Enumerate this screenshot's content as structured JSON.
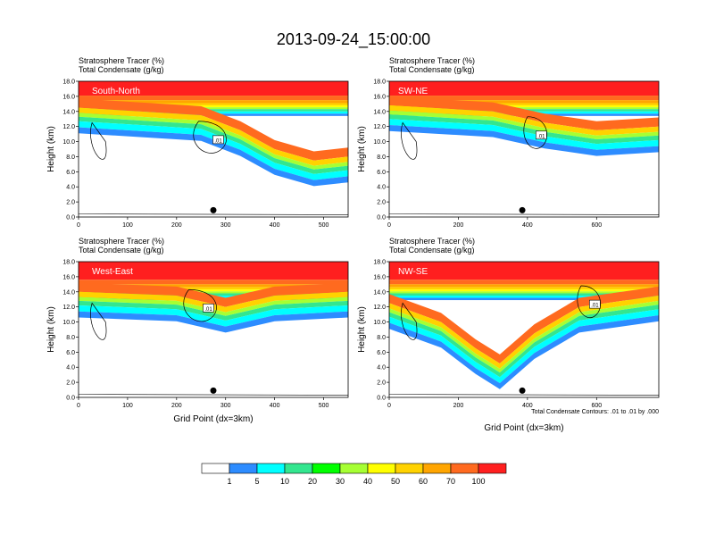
{
  "title": "2013-09-24_15:00:00",
  "header": {
    "line1": "Stratosphere Tracer   (%)",
    "line2": "Total Condensate   (g/kg)"
  },
  "ylabel": "Height (km)",
  "xlabel": "Grid Point (dx=3km)",
  "footnote": "Total Condensate Contours: .01 to .01 by .000",
  "colorbar": {
    "colors": [
      "#ffffff",
      "#2d8cff",
      "#00ffff",
      "#33e68f",
      "#00ff00",
      "#a6ff33",
      "#ffff00",
      "#ffd200",
      "#ffa500",
      "#ff6a1f",
      "#ff1f1f"
    ],
    "labels": [
      "1",
      "5",
      "10",
      "20",
      "30",
      "40",
      "50",
      "60",
      "70",
      "100"
    ]
  },
  "chart_data": [
    {
      "type": "heatmap",
      "panel": "South-North",
      "label": "South-North",
      "xlim": [
        0,
        550
      ],
      "xticks": [
        "0",
        "100",
        "200",
        "300",
        "400",
        "500"
      ],
      "ylim": [
        0,
        18
      ],
      "yticks": [
        "0.0",
        "2.0",
        "4.0",
        "6.0",
        "8.0",
        "10.0",
        "12.0",
        "14.0",
        "16.0",
        "18.0"
      ],
      "tropopause_km": 14.5,
      "marker_x": 275,
      "contour_label": ".01",
      "contour_label_x": 285,
      "contour_label_y_km": 10.2,
      "intrusion": [
        [
          0,
          14.5
        ],
        [
          250,
          13.5
        ],
        [
          330,
          11.5
        ],
        [
          400,
          9.0
        ],
        [
          480,
          7.5
        ],
        [
          550,
          8.0
        ]
      ]
    },
    {
      "type": "heatmap",
      "panel": "SW-NE",
      "label": "SW-NE",
      "xlim": [
        0,
        780
      ],
      "xticks": [
        "0",
        "200",
        "400",
        "600"
      ],
      "ylim": [
        0,
        18
      ],
      "yticks": [
        "0.0",
        "2.0",
        "4.0",
        "6.0",
        "8.0",
        "10.0",
        "12.0",
        "14.0",
        "16.0",
        "18.0"
      ],
      "tropopause_km": 14.5,
      "marker_x": 385,
      "contour_label": ".01",
      "contour_label_x": 440,
      "contour_label_y_km": 10.8,
      "intrusion": [
        [
          0,
          14.8
        ],
        [
          300,
          14.0
        ],
        [
          450,
          12.5
        ],
        [
          600,
          11.5
        ],
        [
          780,
          12.0
        ]
      ]
    },
    {
      "type": "heatmap",
      "panel": "West-East",
      "label": "West-East",
      "xlim": [
        0,
        550
      ],
      "xticks": [
        "0",
        "100",
        "200",
        "300",
        "400",
        "500"
      ],
      "ylim": [
        0,
        18
      ],
      "yticks": [
        "0.0",
        "2.0",
        "4.0",
        "6.0",
        "8.0",
        "10.0",
        "12.0",
        "14.0",
        "16.0",
        "18.0"
      ],
      "tropopause_km": 14.0,
      "marker_x": 275,
      "contour_label": ".01",
      "contour_label_x": 265,
      "contour_label_y_km": 11.8,
      "intrusion": [
        [
          0,
          14.0
        ],
        [
          200,
          13.5
        ],
        [
          300,
          12.0
        ],
        [
          400,
          13.5
        ],
        [
          550,
          14.0
        ]
      ]
    },
    {
      "type": "heatmap",
      "panel": "NW-SE",
      "label": "NW-SE",
      "xlim": [
        0,
        780
      ],
      "xticks": [
        "0",
        "200",
        "400",
        "600"
      ],
      "ylim": [
        0,
        18
      ],
      "yticks": [
        "0.0",
        "2.0",
        "4.0",
        "6.0",
        "8.0",
        "10.0",
        "12.0",
        "14.0",
        "16.0",
        "18.0"
      ],
      "tropopause_km": 14.0,
      "marker_x": 385,
      "contour_label": ".01",
      "contour_label_x": 595,
      "contour_label_y_km": 12.3,
      "intrusion": [
        [
          0,
          12.5
        ],
        [
          150,
          10.0
        ],
        [
          250,
          6.5
        ],
        [
          320,
          4.5
        ],
        [
          420,
          8.5
        ],
        [
          550,
          12.0
        ],
        [
          780,
          13.5
        ]
      ]
    }
  ]
}
